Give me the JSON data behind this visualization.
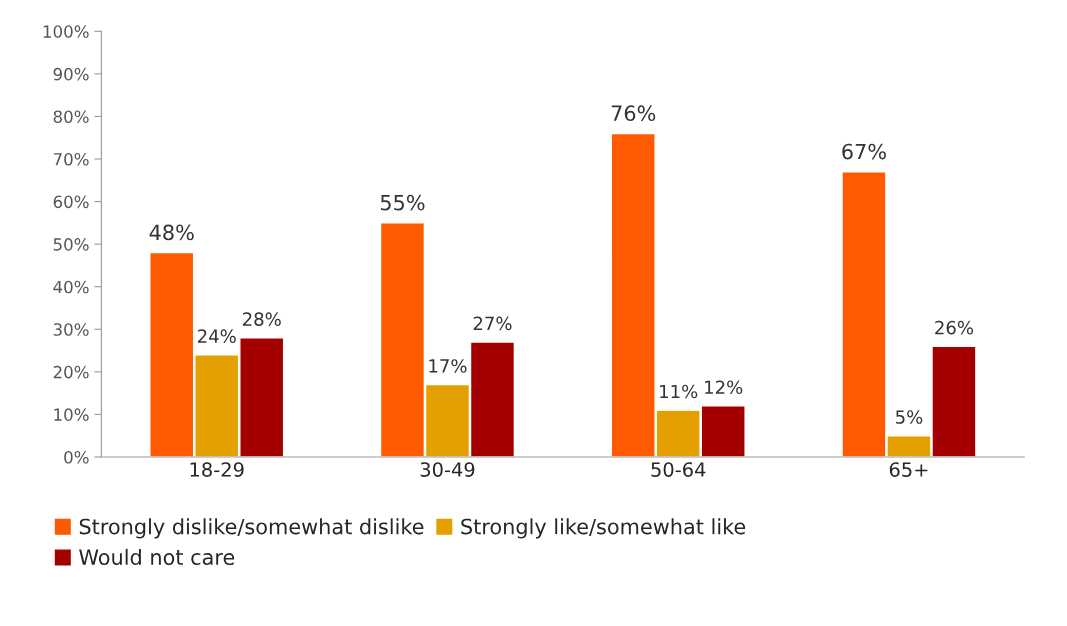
{
  "chart_data": {
    "type": "bar",
    "categories": [
      "18-29",
      "30-49",
      "50-64",
      "65+"
    ],
    "series": [
      {
        "name": "Strongly dislike/somewhat dislike",
        "color": "#ff5a00",
        "values": [
          48,
          55,
          76,
          67
        ],
        "value_labels": [
          "48%",
          "55%",
          "76%",
          "67%"
        ]
      },
      {
        "name": "Strongly like/somewhat like",
        "color": "#e3a000",
        "values": [
          24,
          17,
          11,
          5
        ],
        "value_labels": [
          "24%",
          "17%",
          "11%",
          "5%"
        ]
      },
      {
        "name": "Would not care",
        "color": "#a50000",
        "values": [
          28,
          27,
          12,
          26
        ],
        "value_labels": [
          "28%",
          "27%",
          "12%",
          "26%"
        ]
      }
    ],
    "ylim": [
      0,
      100
    ],
    "yticks": [
      {
        "value": 0,
        "label": "0%"
      },
      {
        "value": 10,
        "label": "10%"
      },
      {
        "value": 20,
        "label": "20%"
      },
      {
        "value": 30,
        "label": "30%"
      },
      {
        "value": 40,
        "label": "40%"
      },
      {
        "value": 50,
        "label": "50%"
      },
      {
        "value": 60,
        "label": "60%"
      },
      {
        "value": 70,
        "label": "70%"
      },
      {
        "value": 80,
        "label": "80%"
      },
      {
        "value": 90,
        "label": "90%"
      },
      {
        "value": 100,
        "label": "100%"
      }
    ],
    "grid": false,
    "legend": "bottom"
  }
}
